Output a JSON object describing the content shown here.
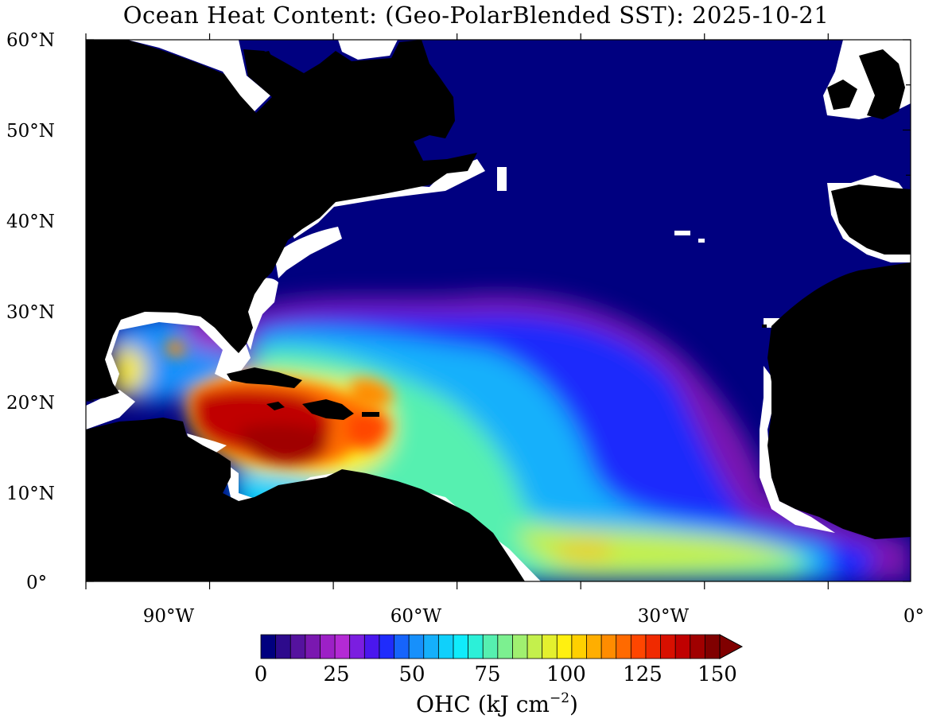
{
  "title": "Ocean Heat Content: (Geo-PolarBlended SST): 2025-10-21",
  "map": {
    "lat_labels": [
      "60°N",
      "50°N",
      "40°N",
      "30°N",
      "20°N",
      "10°N",
      "0°"
    ],
    "lon_labels": [
      "90°W",
      "60°W",
      "30°W",
      "0°"
    ],
    "land_color": "#000000",
    "nodata_color": "#ffffff",
    "base_ocean_color": "#000080"
  },
  "colorbar": {
    "label_main": "OHC (kJ cm",
    "label_exp": "−2",
    "label_close": ")",
    "tick_labels": [
      "0",
      "25",
      "50",
      "75",
      "100",
      "125",
      "150"
    ],
    "extend": "max",
    "colors": [
      "#00007f",
      "#2d0a8c",
      "#55129e",
      "#7a18b0",
      "#9d20c6",
      "#b42ad4",
      "#7b1ee0",
      "#4a17ee",
      "#1f2cfc",
      "#1664fb",
      "#1790fb",
      "#15b0fb",
      "#10d0fb",
      "#10ecfb",
      "#2cf0d8",
      "#56f0b0",
      "#7cf090",
      "#a0f070",
      "#c4f04c",
      "#e4f02e",
      "#fff010",
      "#ffd000",
      "#ffae00",
      "#ff8c00",
      "#ff6a00",
      "#ff4600",
      "#f02a00",
      "#d81000",
      "#c00000",
      "#a00000",
      "#800000"
    ]
  }
}
